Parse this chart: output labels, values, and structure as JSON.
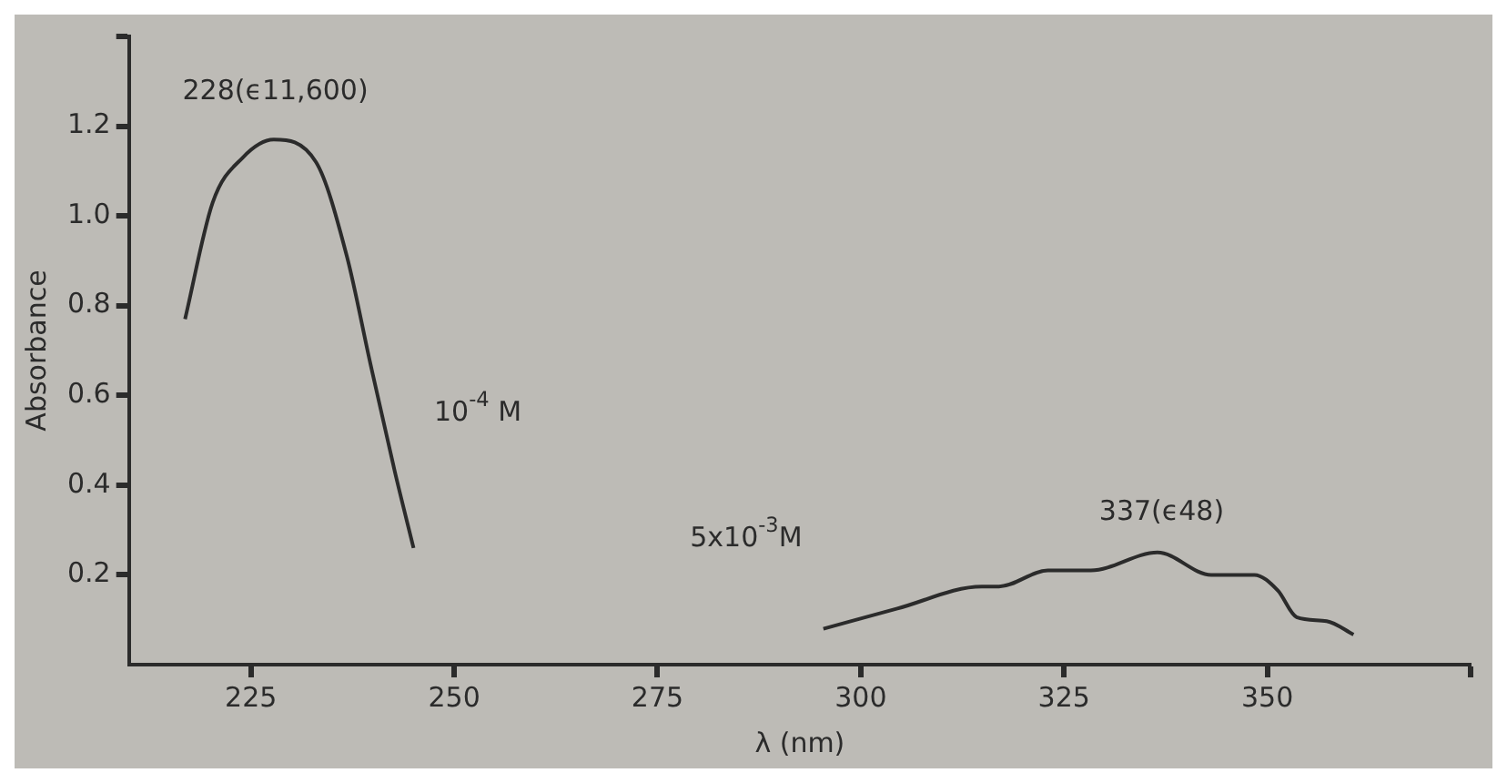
{
  "chart_data": {
    "type": "line",
    "xlabel": "λ (nm)",
    "ylabel": "Absorbance",
    "xlim": [
      210,
      375
    ],
    "xticks": [
      225,
      250,
      275,
      300,
      325,
      350,
      {
        "value": 375,
        "label": null
      }
    ],
    "ylim": [
      0,
      1.4
    ],
    "yticks": [
      0.2,
      0.4,
      0.6,
      0.8,
      {
        "value": 1,
        "label": "1.0"
      },
      1.2,
      {
        "value": 1.4,
        "label": null
      }
    ],
    "grid": false,
    "legend": false,
    "marker": "none",
    "line_style": "solid",
    "series": [
      {
        "color": "#2b2b2b",
        "x": [
          216.9,
          220.3,
          224,
          227.8,
          233,
          236.8,
          239.7,
          242.7,
          245
        ],
        "values": [
          0.77,
          1.03,
          1.13,
          1.17,
          1.12,
          0.91,
          0.67,
          0.43,
          0.26
        ]
      },
      {
        "color": "#2b2b2b",
        "x": [
          295.4,
          304.5,
          314.9,
          317,
          323,
          328.3,
          336.5,
          343.1,
          348.4,
          351.3,
          353.6,
          357.3,
          360.6
        ],
        "values": [
          0.08,
          0.125,
          0.174,
          0.174,
          0.21,
          0.21,
          0.25,
          0.2,
          0.2,
          0.165,
          0.106,
          0.097,
          0.067
        ]
      }
    ],
    "annotations": [
      {
        "text": "228(ϵ11,600)",
        "x": 228,
        "y": 1.17
      },
      "10$^{-4}$ M",
      "5x10$^{-3}$M",
      {
        "text": "337(ϵ48)",
        "x": 337,
        "y": 0.25
      }
    ]
  }
}
